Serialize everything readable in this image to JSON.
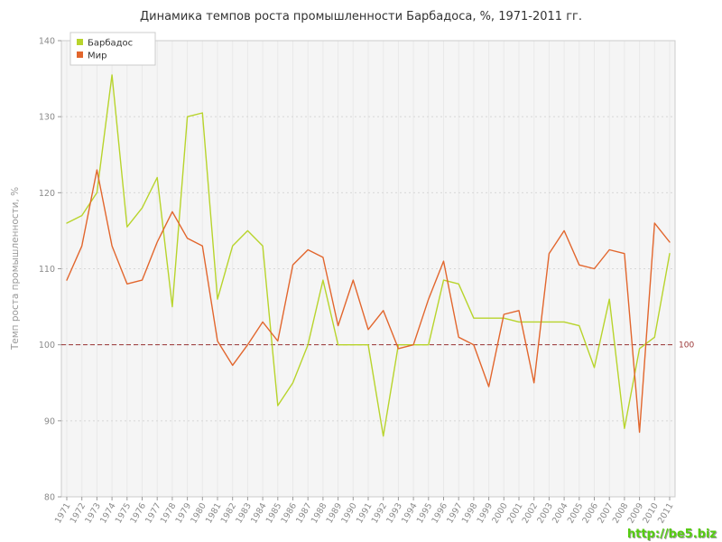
{
  "page": {
    "watermark": "http://be5.biz"
  },
  "chart_data": {
    "type": "line",
    "title": "Динамика темпов роста промышленности Барбадоса, %, 1971-2011 гг.",
    "xlabel": "",
    "ylabel": "Темп роста промышленности, %",
    "ylim": [
      80,
      140
    ],
    "yticks": [
      80,
      90,
      100,
      110,
      120,
      130,
      140
    ],
    "grid": true,
    "legend_position": "top-left",
    "reference_line": {
      "value": 100,
      "label": "100",
      "color": "#993333"
    },
    "categories": [
      "1971",
      "1972",
      "1973",
      "1974",
      "1975",
      "1976",
      "1977",
      "1978",
      "1979",
      "1980",
      "1981",
      "1982",
      "1983",
      "1984",
      "1985",
      "1986",
      "1987",
      "1988",
      "1989",
      "1990",
      "1991",
      "1992",
      "1993",
      "1994",
      "1995",
      "1996",
      "1997",
      "1998",
      "1999",
      "2000",
      "2001",
      "2002",
      "2003",
      "2004",
      "2005",
      "2006",
      "2007",
      "2008",
      "2009",
      "2010",
      "2011"
    ],
    "series": [
      {
        "id": "barbados",
        "name": "Барбадос",
        "color": "#b8d42c",
        "values": [
          116,
          117,
          120,
          135.5,
          115.5,
          118,
          122,
          105,
          130,
          130.5,
          106,
          113,
          115,
          113,
          92,
          95,
          100,
          108.5,
          100,
          100,
          100,
          88,
          100,
          100,
          100,
          108.5,
          108,
          103.5,
          103.5,
          103.5,
          103,
          103,
          103,
          103,
          102.5,
          97,
          106,
          89,
          99.5,
          101,
          112
        ]
      },
      {
        "id": "world",
        "name": "Мир",
        "color": "#e2662d",
        "values": [
          108.5,
          113,
          123,
          113,
          108,
          108.5,
          113.5,
          117.5,
          114,
          113,
          100.5,
          97.3,
          100,
          103,
          100.5,
          110.5,
          112.5,
          111.5,
          102.5,
          108.5,
          102,
          104.5,
          99.5,
          100,
          106,
          111,
          101,
          100,
          94.5,
          104,
          104.5,
          95,
          112,
          115,
          110.5,
          110,
          112.5,
          112,
          88.5,
          116,
          113.5
        ]
      }
    ]
  }
}
